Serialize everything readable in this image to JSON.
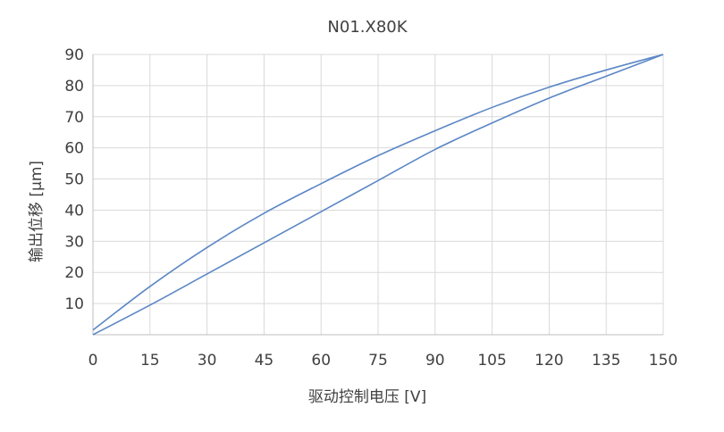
{
  "chart_data": {
    "type": "line",
    "title": "N01.X80K",
    "xlabel": "驱动控制电压 [V]",
    "ylabel": "输出位移 [μm]",
    "xlim": [
      0,
      150
    ],
    "ylim": [
      0,
      90
    ],
    "x_ticks": [
      0,
      15,
      30,
      45,
      60,
      75,
      90,
      105,
      120,
      135,
      150
    ],
    "x_tick_labels": [
      "0",
      "15",
      "30",
      "45",
      "60",
      "75",
      "90",
      "105",
      "120",
      "135",
      "150"
    ],
    "y_ticks": [
      10,
      20,
      30,
      40,
      50,
      60,
      70,
      80,
      90
    ],
    "y_tick_labels": [
      "10",
      "20",
      "30",
      "40",
      "50",
      "60",
      "70",
      "80",
      "90"
    ],
    "grid": true,
    "legend": "none",
    "series": [
      {
        "color": "#5b87c5",
        "x": [
          0,
          15,
          30,
          45,
          60,
          75,
          90,
          105,
          120,
          135,
          150
        ],
        "y": [
          0,
          9.5,
          19.5,
          29.5,
          39.5,
          49.5,
          59.5,
          68,
          76,
          83,
          90
        ]
      },
      {
        "color": "#5b87c5",
        "x": [
          0,
          15,
          30,
          45,
          60,
          75,
          90,
          105,
          120,
          135,
          150
        ],
        "y": [
          1.5,
          15.5,
          28,
          39,
          48.5,
          57.5,
          65.5,
          73,
          79.5,
          85,
          90
        ]
      }
    ]
  }
}
